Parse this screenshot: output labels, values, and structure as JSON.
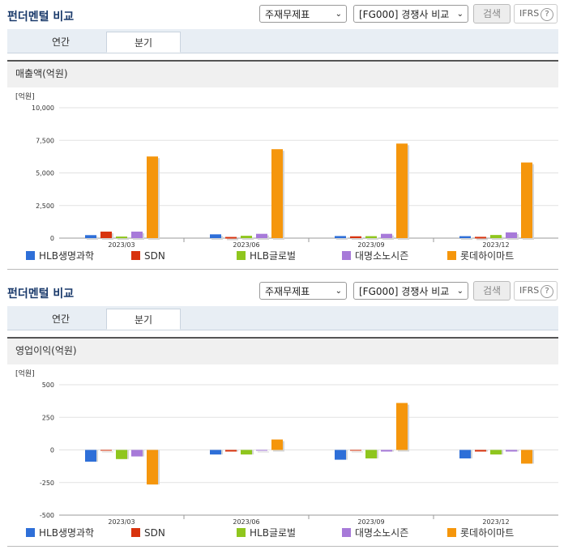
{
  "panels": [
    {
      "title": "펀더멘털 비교",
      "select1": "주재무제표",
      "select2": "[FG000] 경쟁사 비교",
      "search_label": "검색",
      "ifrs_label": "IFRS",
      "tabs": [
        {
          "label": "연간"
        },
        {
          "label": "분기"
        }
      ],
      "section_label": "매출액(억원)",
      "legend": [
        {
          "name": "HLB생명과학",
          "color": "#2e6fd8"
        },
        {
          "name": "SDN",
          "color": "#d8330e"
        },
        {
          "name": "HLB글로벌",
          "color": "#8fc61e"
        },
        {
          "name": "대명소노시즌",
          "color": "#a77ad9"
        },
        {
          "name": "롯데하이마트",
          "color": "#f5960c"
        }
      ]
    },
    {
      "title": "펀더멘털 비교",
      "select1": "주재무제표",
      "select2": "[FG000] 경쟁사 비교",
      "search_label": "검색",
      "ifrs_label": "IFRS",
      "tabs": [
        {
          "label": "연간"
        },
        {
          "label": "분기"
        }
      ],
      "section_label": "영업이익(억원)",
      "legend": [
        {
          "name": "HLB생명과학",
          "color": "#2e6fd8"
        },
        {
          "name": "SDN",
          "color": "#d8330e"
        },
        {
          "name": "HLB글로벌",
          "color": "#8fc61e"
        },
        {
          "name": "대명소노시즌",
          "color": "#a77ad9"
        },
        {
          "name": "롯데하이마트",
          "color": "#f5960c"
        }
      ]
    }
  ],
  "chart_data": [
    {
      "type": "bar",
      "unit_label": "[억원]",
      "categories": [
        "2023/03",
        "2023/06",
        "2023/09",
        "2023/12"
      ],
      "ylim": [
        0,
        10000
      ],
      "yticks": [
        "0",
        "2,500",
        "5,000",
        "7,500",
        "10,000"
      ],
      "ytick_values": [
        0,
        2500,
        5000,
        7500,
        10000
      ],
      "grid": true,
      "series": [
        {
          "name": "HLB생명과학",
          "values": [
            230,
            290,
            160,
            150
          ]
        },
        {
          "name": "SDN",
          "values": [
            500,
            90,
            140,
            100
          ]
        },
        {
          "name": "HLB글로벌",
          "values": [
            120,
            180,
            150,
            240
          ]
        },
        {
          "name": "대명소노시즌",
          "values": [
            500,
            330,
            330,
            440
          ]
        },
        {
          "name": "롯데하이마트",
          "values": [
            6260,
            6820,
            7250,
            5800
          ]
        }
      ]
    },
    {
      "type": "bar",
      "unit_label": "[억원]",
      "categories": [
        "2023/03",
        "2023/06",
        "2023/09",
        "2023/12"
      ],
      "ylim": [
        -500,
        500
      ],
      "yticks": [
        "-500",
        "-250",
        "0",
        "250",
        "500"
      ],
      "ytick_values": [
        -500,
        -250,
        0,
        250,
        500
      ],
      "grid": true,
      "series": [
        {
          "name": "HLB생명과학",
          "values": [
            -90,
            -35,
            -75,
            -65
          ]
        },
        {
          "name": "SDN",
          "values": [
            0,
            -10,
            0,
            -10
          ]
        },
        {
          "name": "HLB글로벌",
          "values": [
            -70,
            -35,
            -65,
            -35
          ]
        },
        {
          "name": "대명소노시즌",
          "values": [
            -50,
            0,
            -10,
            -10
          ]
        },
        {
          "name": "롯데하이마트",
          "values": [
            -265,
            80,
            360,
            -105
          ]
        }
      ]
    }
  ]
}
